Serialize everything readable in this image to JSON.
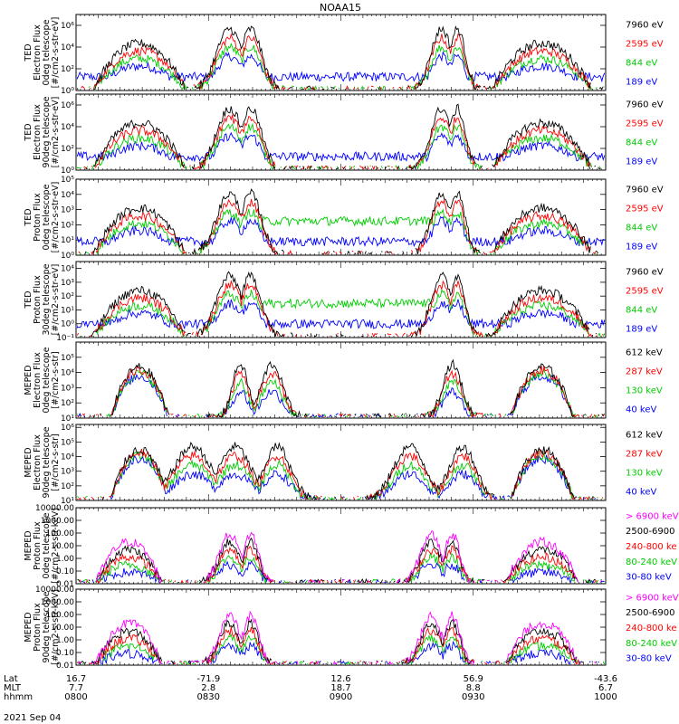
{
  "chart_data": {
    "type": "line",
    "title": "NOAA15",
    "date": "2021 Sep 04",
    "axis_rows": [
      {
        "label": "Lat",
        "values": [
          "16.7",
          "-71.9",
          "12.6",
          "56.9",
          "-43.6"
        ]
      },
      {
        "label": "MLT",
        "values": [
          "7.7",
          "2.8",
          "18.7",
          "8.8",
          "6.7"
        ]
      },
      {
        "label": "hhmm",
        "values": [
          "0800",
          "0830",
          "0900",
          "0930",
          "1000"
        ]
      }
    ],
    "panels": [
      {
        "ylabel": [
          "TED",
          "Electron Flux",
          "0deg telescope",
          "[#/cm2-s-str-eV]"
        ],
        "yscale": "log",
        "ytick_labels": [
          "10⁰",
          "10²",
          "10⁴",
          "10⁶"
        ],
        "ytick_exp": [
          0,
          2,
          4,
          6
        ],
        "ylim_exp": [
          0,
          7
        ],
        "series": [
          {
            "name": "7960 eV",
            "color": "#000000"
          },
          {
            "name": "2595 eV",
            "color": "#ff0000"
          },
          {
            "name": "844 eV",
            "color": "#00cc00"
          },
          {
            "name": "189 eV",
            "color": "#0000ff"
          }
        ]
      },
      {
        "ylabel": [
          "TED",
          "Electron Flux",
          "90deg telescope",
          "[#/cm2-s-str-eV]"
        ],
        "yscale": "log",
        "ytick_labels": [
          "10⁰",
          "10²",
          "10⁴",
          "10⁶"
        ],
        "ytick_exp": [
          0,
          2,
          4,
          6
        ],
        "ylim_exp": [
          0,
          7
        ],
        "series": [
          {
            "name": "7960 eV",
            "color": "#000000"
          },
          {
            "name": "2595 eV",
            "color": "#ff0000"
          },
          {
            "name": "844 eV",
            "color": "#00cc00"
          },
          {
            "name": "189 eV",
            "color": "#0000ff"
          }
        ]
      },
      {
        "ylabel": [
          "TED",
          "Proton Flux",
          "0deg telescope",
          "[#/cm2-s-str-eV]"
        ],
        "yscale": "log",
        "ytick_labels": [
          "10⁰",
          "10¹",
          "10²",
          "10³",
          "10⁴",
          "10⁵"
        ],
        "ytick_exp": [
          0,
          1,
          2,
          3,
          4,
          5
        ],
        "ylim_exp": [
          0,
          5
        ],
        "series": [
          {
            "name": "7960 eV",
            "color": "#000000"
          },
          {
            "name": "2595 eV",
            "color": "#ff0000"
          },
          {
            "name": "844 eV",
            "color": "#00cc00"
          },
          {
            "name": "189 eV",
            "color": "#0000ff"
          }
        ]
      },
      {
        "ylabel": [
          "TED",
          "Proton Flux",
          "30deg telescope",
          "[#/cm2-s-str-eV]"
        ],
        "yscale": "log",
        "ytick_labels": [
          "10⁻¹",
          "10⁰",
          "10¹",
          "10²",
          "10³",
          "10⁴"
        ],
        "ytick_exp": [
          -1,
          0,
          1,
          2,
          3,
          4
        ],
        "ylim_exp": [
          -1,
          4.5
        ],
        "series": [
          {
            "name": "7960 eV",
            "color": "#000000"
          },
          {
            "name": "2595 eV",
            "color": "#ff0000"
          },
          {
            "name": "844 eV",
            "color": "#00cc00"
          },
          {
            "name": "189 eV",
            "color": "#0000ff"
          }
        ]
      },
      {
        "ylabel": [
          "MEPED",
          "Electron Flux",
          "0deg telescope",
          "[#/cm2-s-str]"
        ],
        "yscale": "log",
        "ytick_labels": [
          "10¹",
          "10²",
          "10³",
          "10⁴",
          "10⁵"
        ],
        "ytick_exp": [
          1,
          2,
          3,
          4,
          5
        ],
        "ylim_exp": [
          1,
          6
        ],
        "series": [
          {
            "name": "612 keV",
            "color": "#000000"
          },
          {
            "name": "287 keV",
            "color": "#ff0000"
          },
          {
            "name": "130 keV",
            "color": "#00cc00"
          },
          {
            "name": "40 keV",
            "color": "#0000ff"
          }
        ]
      },
      {
        "ylabel": [
          "MEPED",
          "Electron Flux",
          "90deg telescope",
          "[#/cm2-s-str]"
        ],
        "yscale": "log",
        "ytick_labels": [
          "10¹",
          "10²",
          "10³",
          "10⁴",
          "10⁵",
          "10⁶"
        ],
        "ytick_exp": [
          1,
          2,
          3,
          4,
          5,
          6
        ],
        "ylim_exp": [
          1,
          6.2
        ],
        "series": [
          {
            "name": "612 keV",
            "color": "#000000"
          },
          {
            "name": "287 keV",
            "color": "#ff0000"
          },
          {
            "name": "130 keV",
            "color": "#00cc00"
          },
          {
            "name": "40 keV",
            "color": "#0000ff"
          }
        ]
      },
      {
        "ylabel": [
          "MEPED",
          "Proton Flux",
          "0deg telescope",
          "[#/cm2-s-str-keV]"
        ],
        "yscale": "log",
        "ytick_labels": [
          "0.01",
          "0.10",
          "1.00",
          "10.00",
          "100.00",
          "1000.00",
          "10000.00"
        ],
        "ytick_exp": [
          -2,
          -1,
          0,
          1,
          2,
          3,
          4
        ],
        "ylim_exp": [
          -2,
          4
        ],
        "series": [
          {
            "name": "> 6900 keV",
            "color": "#ff00ff"
          },
          {
            "name": "2500-6900",
            "color": "#000000"
          },
          {
            "name": "240-800 ke",
            "color": "#ff0000"
          },
          {
            "name": "80-240 keV",
            "color": "#00cc00"
          },
          {
            "name": "30-80 keV",
            "color": "#0000ff"
          }
        ]
      },
      {
        "ylabel": [
          "MEPED",
          "Proton Flux",
          "90deg telescope",
          "[#/cm2-s-str-keV]"
        ],
        "yscale": "log",
        "ytick_labels": [
          "0.01",
          "0.10",
          "1.00",
          "10.00",
          "100.00",
          "1000.00",
          "10000.00"
        ],
        "ytick_exp": [
          -2,
          -1,
          0,
          1,
          2,
          3,
          4
        ],
        "ylim_exp": [
          -2,
          4
        ],
        "series": [
          {
            "name": "> 6900 keV",
            "color": "#ff00ff"
          },
          {
            "name": "2500-6900",
            "color": "#000000"
          },
          {
            "name": "240-800 ke",
            "color": "#ff0000"
          },
          {
            "name": "80-240 keV",
            "color": "#00cc00"
          },
          {
            "name": "30-80 keV",
            "color": "#0000ff"
          }
        ]
      }
    ]
  }
}
